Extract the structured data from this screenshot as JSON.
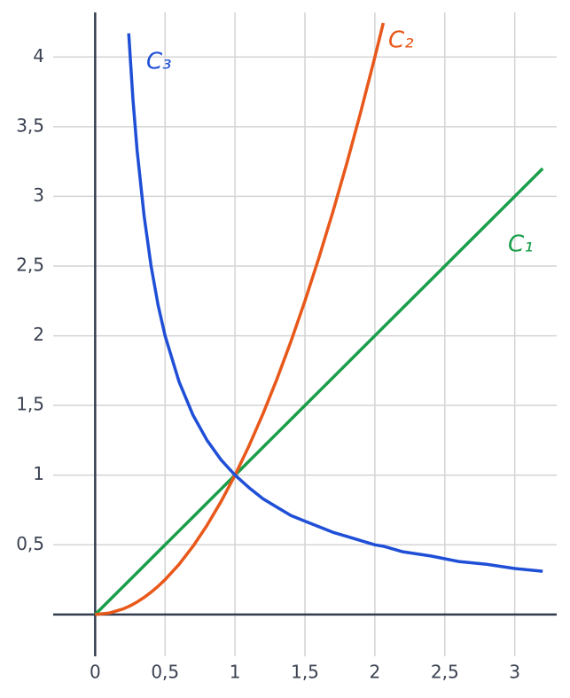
{
  "chart_data": {
    "type": "line",
    "x": [
      0,
      0.1,
      0.2,
      0.24,
      0.27,
      0.3,
      0.35,
      0.4,
      0.45,
      0.5,
      0.6,
      0.7,
      0.8,
      0.9,
      1,
      1.1,
      1.2,
      1.3,
      1.4,
      1.5,
      1.6,
      1.7,
      1.8,
      1.9,
      2,
      2.06,
      2.2,
      2.4,
      2.6,
      2.8,
      3,
      3.2
    ],
    "series": [
      {
        "name": "C₁",
        "color": "#1a9e4a",
        "values": [
          0,
          0.1,
          0.2,
          0.24,
          0.27,
          0.3,
          0.35,
          0.4,
          0.45,
          0.5,
          0.6,
          0.7,
          0.8,
          0.9,
          1,
          1.1,
          1.2,
          1.3,
          1.4,
          1.5,
          1.6,
          1.7,
          1.8,
          1.9,
          2,
          2.06,
          2.2,
          2.4,
          2.6,
          2.8,
          3,
          3.2
        ]
      },
      {
        "name": "C₂",
        "color": "#e8581a",
        "values": [
          0,
          0.01,
          0.04,
          0.0576,
          0.0729,
          0.09,
          0.1225,
          0.16,
          0.2025,
          0.25,
          0.36,
          0.49,
          0.64,
          0.81,
          1,
          1.21,
          1.44,
          1.69,
          1.96,
          2.25,
          2.56,
          2.89,
          3.24,
          3.61,
          4,
          4.2436,
          null,
          null,
          null,
          null,
          null,
          null
        ]
      },
      {
        "name": "C₃",
        "color": "#1f4fd6",
        "values": [
          null,
          null,
          null,
          4.17,
          3.7,
          3.33,
          2.86,
          2.5,
          2.22,
          2,
          1.67,
          1.43,
          1.25,
          1.11,
          1,
          0.91,
          0.83,
          0.77,
          0.71,
          0.67,
          0.63,
          0.59,
          0.56,
          0.53,
          0.5,
          0.49,
          0.45,
          0.42,
          0.38,
          0.36,
          0.33,
          0.31
        ]
      }
    ],
    "xlim": [
      -0.3,
      3.3
    ],
    "ylim": [
      -0.3,
      4.32
    ],
    "xticks": [
      0,
      {
        "value": 0.5,
        "label": "0,5"
      },
      1,
      {
        "value": 1.5,
        "label": "1,5"
      },
      2,
      {
        "value": 2.5,
        "label": "2,5"
      },
      3
    ],
    "yticks": [
      {
        "value": 0.5,
        "label": "0,5"
      },
      1,
      {
        "value": 1.5,
        "label": "1,5"
      },
      2,
      {
        "value": 2.5,
        "label": "2,5"
      },
      3,
      {
        "value": 3.5,
        "label": "3,5"
      },
      4
    ],
    "grid": true
  }
}
